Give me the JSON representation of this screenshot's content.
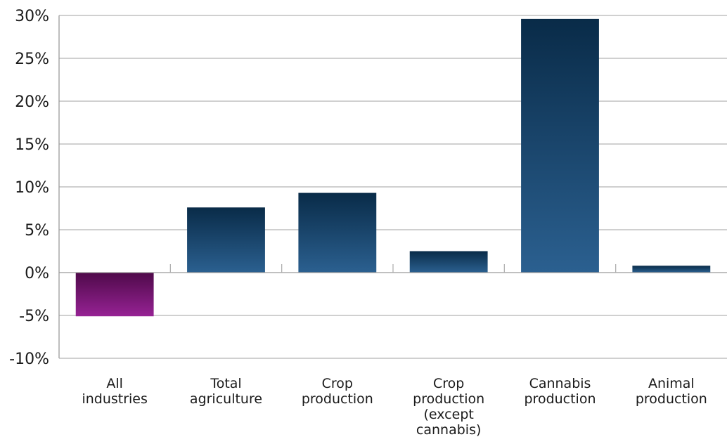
{
  "chart_data": {
    "type": "bar",
    "categories": [
      [
        "All",
        "industries"
      ],
      [
        "Total",
        "agriculture"
      ],
      [
        "Crop",
        "production"
      ],
      [
        "Crop",
        "production",
        "(except",
        "cannabis)"
      ],
      [
        "Cannabis",
        "production"
      ],
      [
        "Animal",
        "production"
      ]
    ],
    "values": [
      -5.1,
      7.6,
      9.3,
      2.5,
      29.6,
      0.8
    ],
    "ylim": [
      -10,
      30
    ],
    "yticks": [
      30,
      25,
      20,
      15,
      10,
      5,
      0,
      -5,
      -10
    ],
    "ytick_labels": [
      "30%",
      "25%",
      "20%",
      "15%",
      "10%",
      "5%",
      "0%",
      "-5%",
      "-10%"
    ],
    "grid": true,
    "colors": {
      "negative_top": "#4f0a4a",
      "negative_bottom": "#962294",
      "positive_top": "#092b48",
      "positive_bottom": "#2b6090"
    }
  }
}
